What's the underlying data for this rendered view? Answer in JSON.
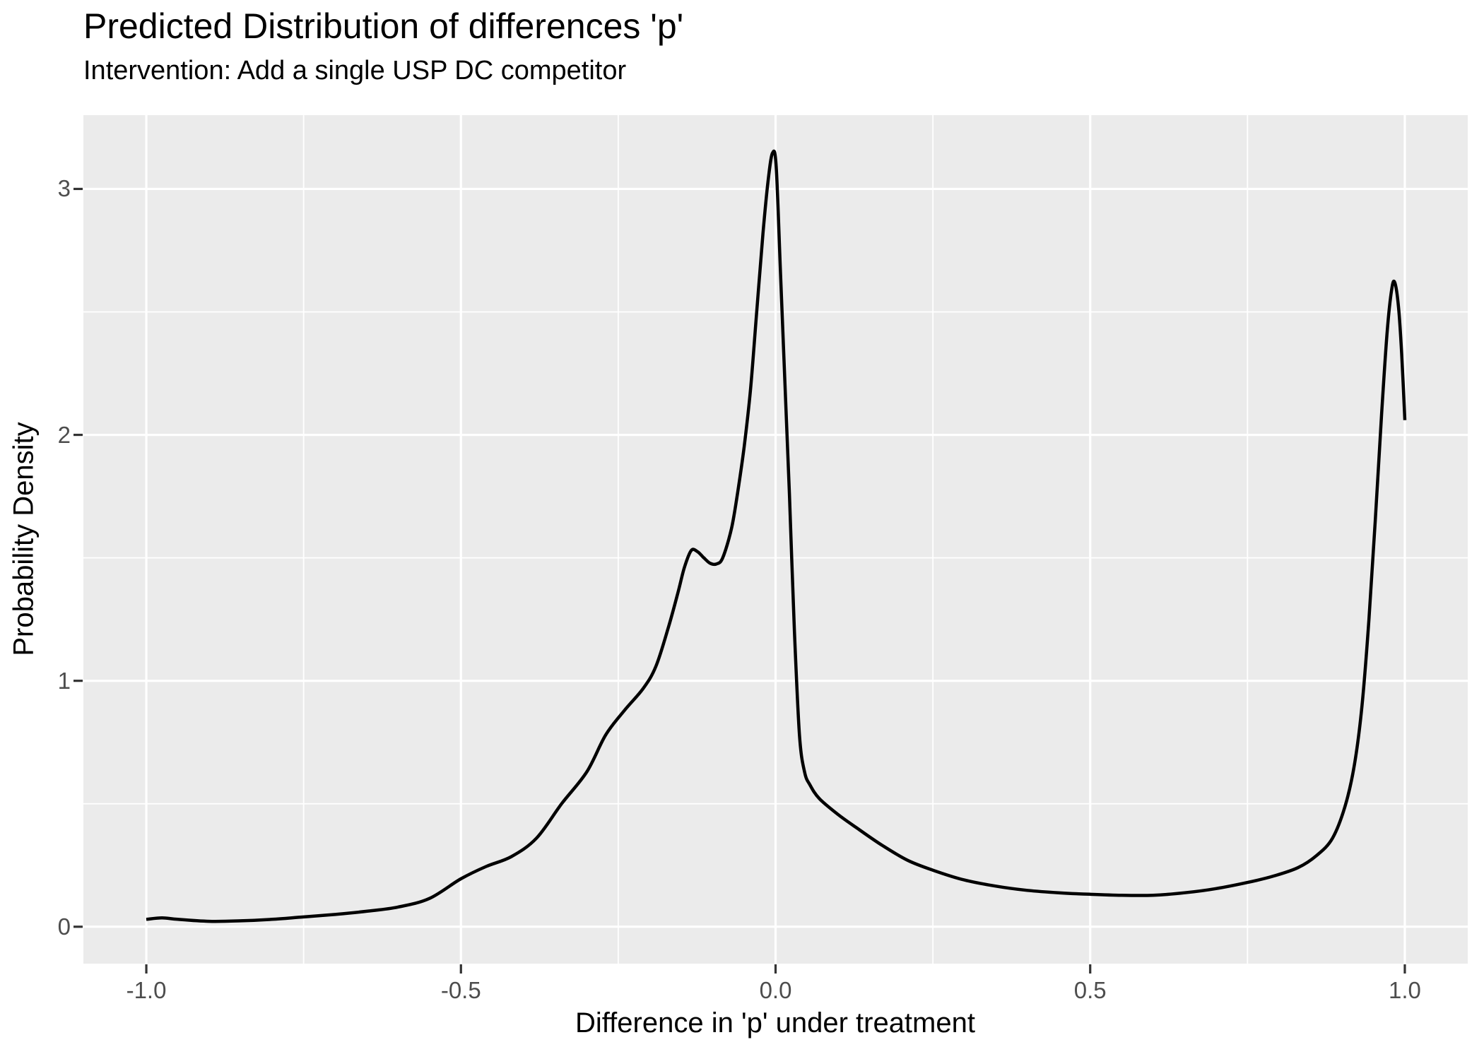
{
  "title": "Predicted Distribution of differences 'p'",
  "subtitle": "Intervention: Add a single USP DC competitor",
  "colors": {
    "panel_bg": "#EBEBEB",
    "grid": "#FFFFFF",
    "curve": "#000000",
    "tick_text": "#4D4D4D",
    "tick_mark": "#333333",
    "title_text": "#000000"
  },
  "chart_data": {
    "type": "line",
    "title": "Predicted Distribution of differences 'p'",
    "subtitle": "Intervention: Add a single USP DC competitor",
    "xlabel": "Difference in 'p' under treatment",
    "ylabel": "Probability Density",
    "xlim": [
      -1.1,
      1.1
    ],
    "ylim": [
      -0.15,
      3.3
    ],
    "grid": true,
    "legend": "none",
    "x_ticks": [
      {
        "v": -1.0,
        "label": "-1.0"
      },
      {
        "v": -0.5,
        "label": "-0.5"
      },
      {
        "v": 0.0,
        "label": "0.0"
      },
      {
        "v": 0.5,
        "label": "0.5"
      },
      {
        "v": 1.0,
        "label": "1.0"
      }
    ],
    "y_ticks": [
      {
        "v": 0,
        "label": "0"
      },
      {
        "v": 1,
        "label": "1"
      },
      {
        "v": 2,
        "label": "2"
      },
      {
        "v": 3,
        "label": "3"
      }
    ],
    "x_minor_ticks": [
      -0.75,
      -0.25,
      0.25,
      0.75
    ],
    "y_minor_ticks": [
      0.5,
      1.5,
      2.5
    ],
    "series": [
      {
        "name": "predicted-density",
        "points": [
          [
            -1.0,
            0.03
          ],
          [
            -0.975,
            0.036
          ],
          [
            -0.95,
            0.03
          ],
          [
            -0.9,
            0.022
          ],
          [
            -0.85,
            0.024
          ],
          [
            -0.8,
            0.03
          ],
          [
            -0.75,
            0.04
          ],
          [
            -0.7,
            0.05
          ],
          [
            -0.65,
            0.063
          ],
          [
            -0.6,
            0.08
          ],
          [
            -0.55,
            0.115
          ],
          [
            -0.5,
            0.195
          ],
          [
            -0.46,
            0.245
          ],
          [
            -0.42,
            0.285
          ],
          [
            -0.38,
            0.36
          ],
          [
            -0.34,
            0.5
          ],
          [
            -0.3,
            0.63
          ],
          [
            -0.27,
            0.78
          ],
          [
            -0.24,
            0.88
          ],
          [
            -0.21,
            0.97
          ],
          [
            -0.19,
            1.06
          ],
          [
            -0.17,
            1.22
          ],
          [
            -0.155,
            1.36
          ],
          [
            -0.145,
            1.46
          ],
          [
            -0.134,
            1.53
          ],
          [
            -0.124,
            1.525
          ],
          [
            -0.114,
            1.5
          ],
          [
            -0.104,
            1.478
          ],
          [
            -0.094,
            1.475
          ],
          [
            -0.084,
            1.5
          ],
          [
            -0.07,
            1.62
          ],
          [
            -0.06,
            1.77
          ],
          [
            -0.05,
            1.95
          ],
          [
            -0.04,
            2.18
          ],
          [
            -0.03,
            2.5
          ],
          [
            -0.02,
            2.82
          ],
          [
            -0.012,
            3.03
          ],
          [
            -0.005,
            3.145
          ],
          [
            0.001,
            3.09
          ],
          [
            0.008,
            2.65
          ],
          [
            0.015,
            2.2
          ],
          [
            0.022,
            1.76
          ],
          [
            0.03,
            1.2
          ],
          [
            0.038,
            0.78
          ],
          [
            0.046,
            0.63
          ],
          [
            0.055,
            0.575
          ],
          [
            0.07,
            0.52
          ],
          [
            0.1,
            0.455
          ],
          [
            0.13,
            0.4
          ],
          [
            0.17,
            0.33
          ],
          [
            0.21,
            0.27
          ],
          [
            0.25,
            0.23
          ],
          [
            0.3,
            0.19
          ],
          [
            0.35,
            0.165
          ],
          [
            0.4,
            0.148
          ],
          [
            0.45,
            0.138
          ],
          [
            0.5,
            0.132
          ],
          [
            0.55,
            0.128
          ],
          [
            0.6,
            0.128
          ],
          [
            0.65,
            0.138
          ],
          [
            0.7,
            0.155
          ],
          [
            0.75,
            0.18
          ],
          [
            0.79,
            0.205
          ],
          [
            0.83,
            0.24
          ],
          [
            0.86,
            0.29
          ],
          [
            0.885,
            0.36
          ],
          [
            0.905,
            0.49
          ],
          [
            0.92,
            0.66
          ],
          [
            0.932,
            0.9
          ],
          [
            0.943,
            1.25
          ],
          [
            0.953,
            1.65
          ],
          [
            0.963,
            2.08
          ],
          [
            0.972,
            2.42
          ],
          [
            0.979,
            2.59
          ],
          [
            0.984,
            2.62
          ],
          [
            0.99,
            2.52
          ],
          [
            0.995,
            2.33
          ],
          [
            1.0,
            2.06
          ]
        ]
      }
    ]
  }
}
